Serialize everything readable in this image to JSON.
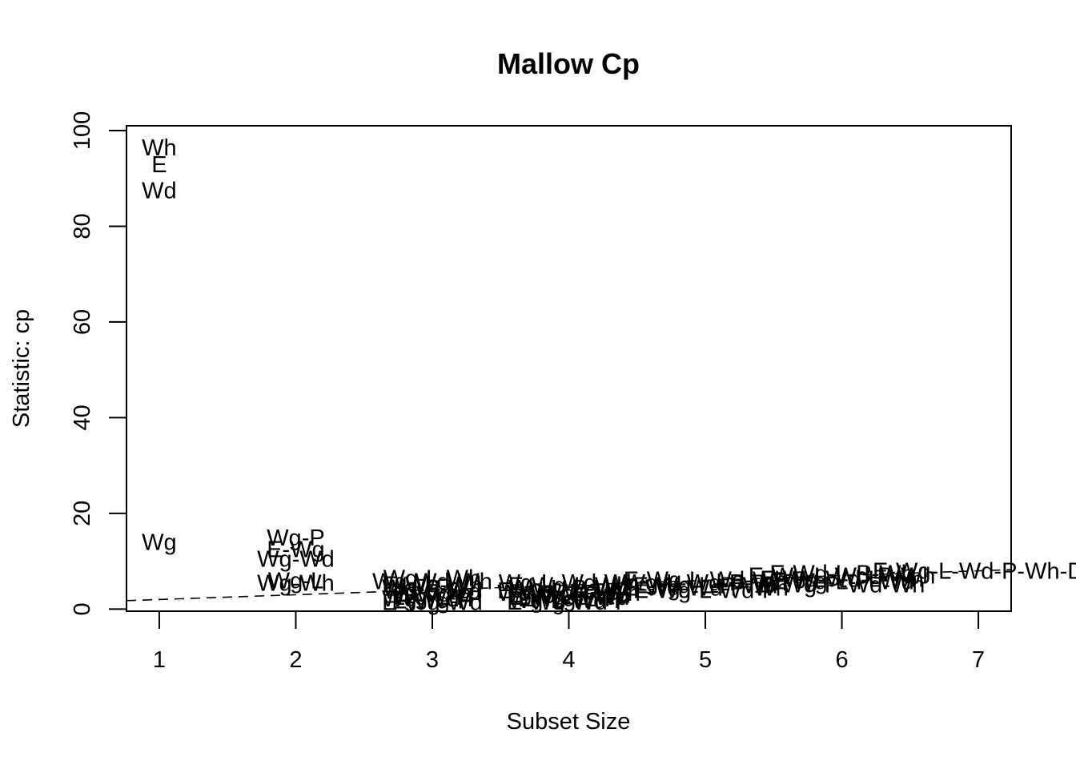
{
  "chart_data": {
    "type": "scatter",
    "title": "Mallow Cp",
    "xlabel": "Subset Size",
    "ylabel": "Statistic: cp",
    "xlim": [
      0.76,
      7.24
    ],
    "ylim": [
      -0.44,
      101.0
    ],
    "x_ticks": [
      1,
      2,
      3,
      4,
      5,
      6,
      7
    ],
    "y_ticks": [
      0,
      20,
      40,
      60,
      80,
      100
    ],
    "grid": false,
    "reference_line": {
      "style": "dashed",
      "slope": 1,
      "intercept": 1
    },
    "points": [
      {
        "label": "Wh",
        "x": 1,
        "y": 96.5
      },
      {
        "label": "E",
        "x": 1,
        "y": 93.0
      },
      {
        "label": "Wd",
        "x": 1,
        "y": 87.5
      },
      {
        "label": "Wg",
        "x": 1,
        "y": 14.0
      },
      {
        "label": "Wg-P",
        "x": 2,
        "y": 15.0
      },
      {
        "label": "E-Wg",
        "x": 2,
        "y": 12.5
      },
      {
        "label": "Wg-Wd",
        "x": 2,
        "y": 10.5
      },
      {
        "label": "Wg-L",
        "x": 2,
        "y": 6.0
      },
      {
        "label": "Wg-Wh",
        "x": 2,
        "y": 5.5
      },
      {
        "label": "Wg-L-Wh",
        "x": 3,
        "y": 6.5
      },
      {
        "label": "Wg-Wd-Wh",
        "x": 3,
        "y": 5.8
      },
      {
        "label": "E-Wg-Wh",
        "x": 3,
        "y": 5.2
      },
      {
        "label": "Wg-P-Wh",
        "x": 3,
        "y": 4.5
      },
      {
        "label": "Wg-L-Wd",
        "x": 3,
        "y": 3.8
      },
      {
        "label": "E-Wg-L",
        "x": 3,
        "y": 3.2
      },
      {
        "label": "Wg-L-P",
        "x": 3,
        "y": 2.6
      },
      {
        "label": "Wg-Wd-P",
        "x": 3,
        "y": 2.2
      },
      {
        "label": "E-Wg-P",
        "x": 3,
        "y": 1.8
      },
      {
        "label": "E-Wg-Wd",
        "x": 3,
        "y": 1.5
      },
      {
        "label": "Wg-L-Wd-Wh",
        "x": 4,
        "y": 5.6
      },
      {
        "label": "E-Wg-L-Wh",
        "x": 4,
        "y": 5.0
      },
      {
        "label": "Wg-L-P-Wh",
        "x": 4,
        "y": 4.4
      },
      {
        "label": "E-Wg-Wd-Wh",
        "x": 4,
        "y": 3.9
      },
      {
        "label": "Wg-Wd-P-Wh",
        "x": 4,
        "y": 3.4
      },
      {
        "label": "E-Wg-P-Wh",
        "x": 4,
        "y": 3.0
      },
      {
        "label": "E-Wg-L-Wd",
        "x": 4,
        "y": 2.6
      },
      {
        "label": "E-Wg-L-P",
        "x": 4,
        "y": 2.2
      },
      {
        "label": "Wg-L-Wd-P",
        "x": 4,
        "y": 1.9
      },
      {
        "label": "E-Wg-Wd-P",
        "x": 4,
        "y": 1.6
      },
      {
        "label": "E-Wg-L-Wd-Wh",
        "x": 5,
        "y": 6.2
      },
      {
        "label": "Wg-L-Wd-P-Wh",
        "x": 5,
        "y": 5.6
      },
      {
        "label": "E-Wg-L-P-Wh",
        "x": 5,
        "y": 5.0
      },
      {
        "label": "E-Wg-Wd-P-Wh",
        "x": 5,
        "y": 4.5
      },
      {
        "label": "E-Wg-L-Wd-P",
        "x": 5,
        "y": 4.0
      },
      {
        "label": "E-Wg-L-Wd-P-Wh",
        "x": 6,
        "y": 7.0
      },
      {
        "label": "E-Wd-L-P-Wh",
        "x": 6,
        "y": 7.5
      },
      {
        "label": "E-Wg-Wd-L-Wh",
        "x": 6,
        "y": 6.3
      },
      {
        "label": "E-Wg-L-P-Wd",
        "x": 6,
        "y": 5.8
      },
      {
        "label": "E-Wg-P-Wd-Wh",
        "x": 6,
        "y": 5.2
      },
      {
        "label": "E-Wg-L-Wd-P-Wh-D",
        "x": 7,
        "y": 8.0
      }
    ]
  }
}
